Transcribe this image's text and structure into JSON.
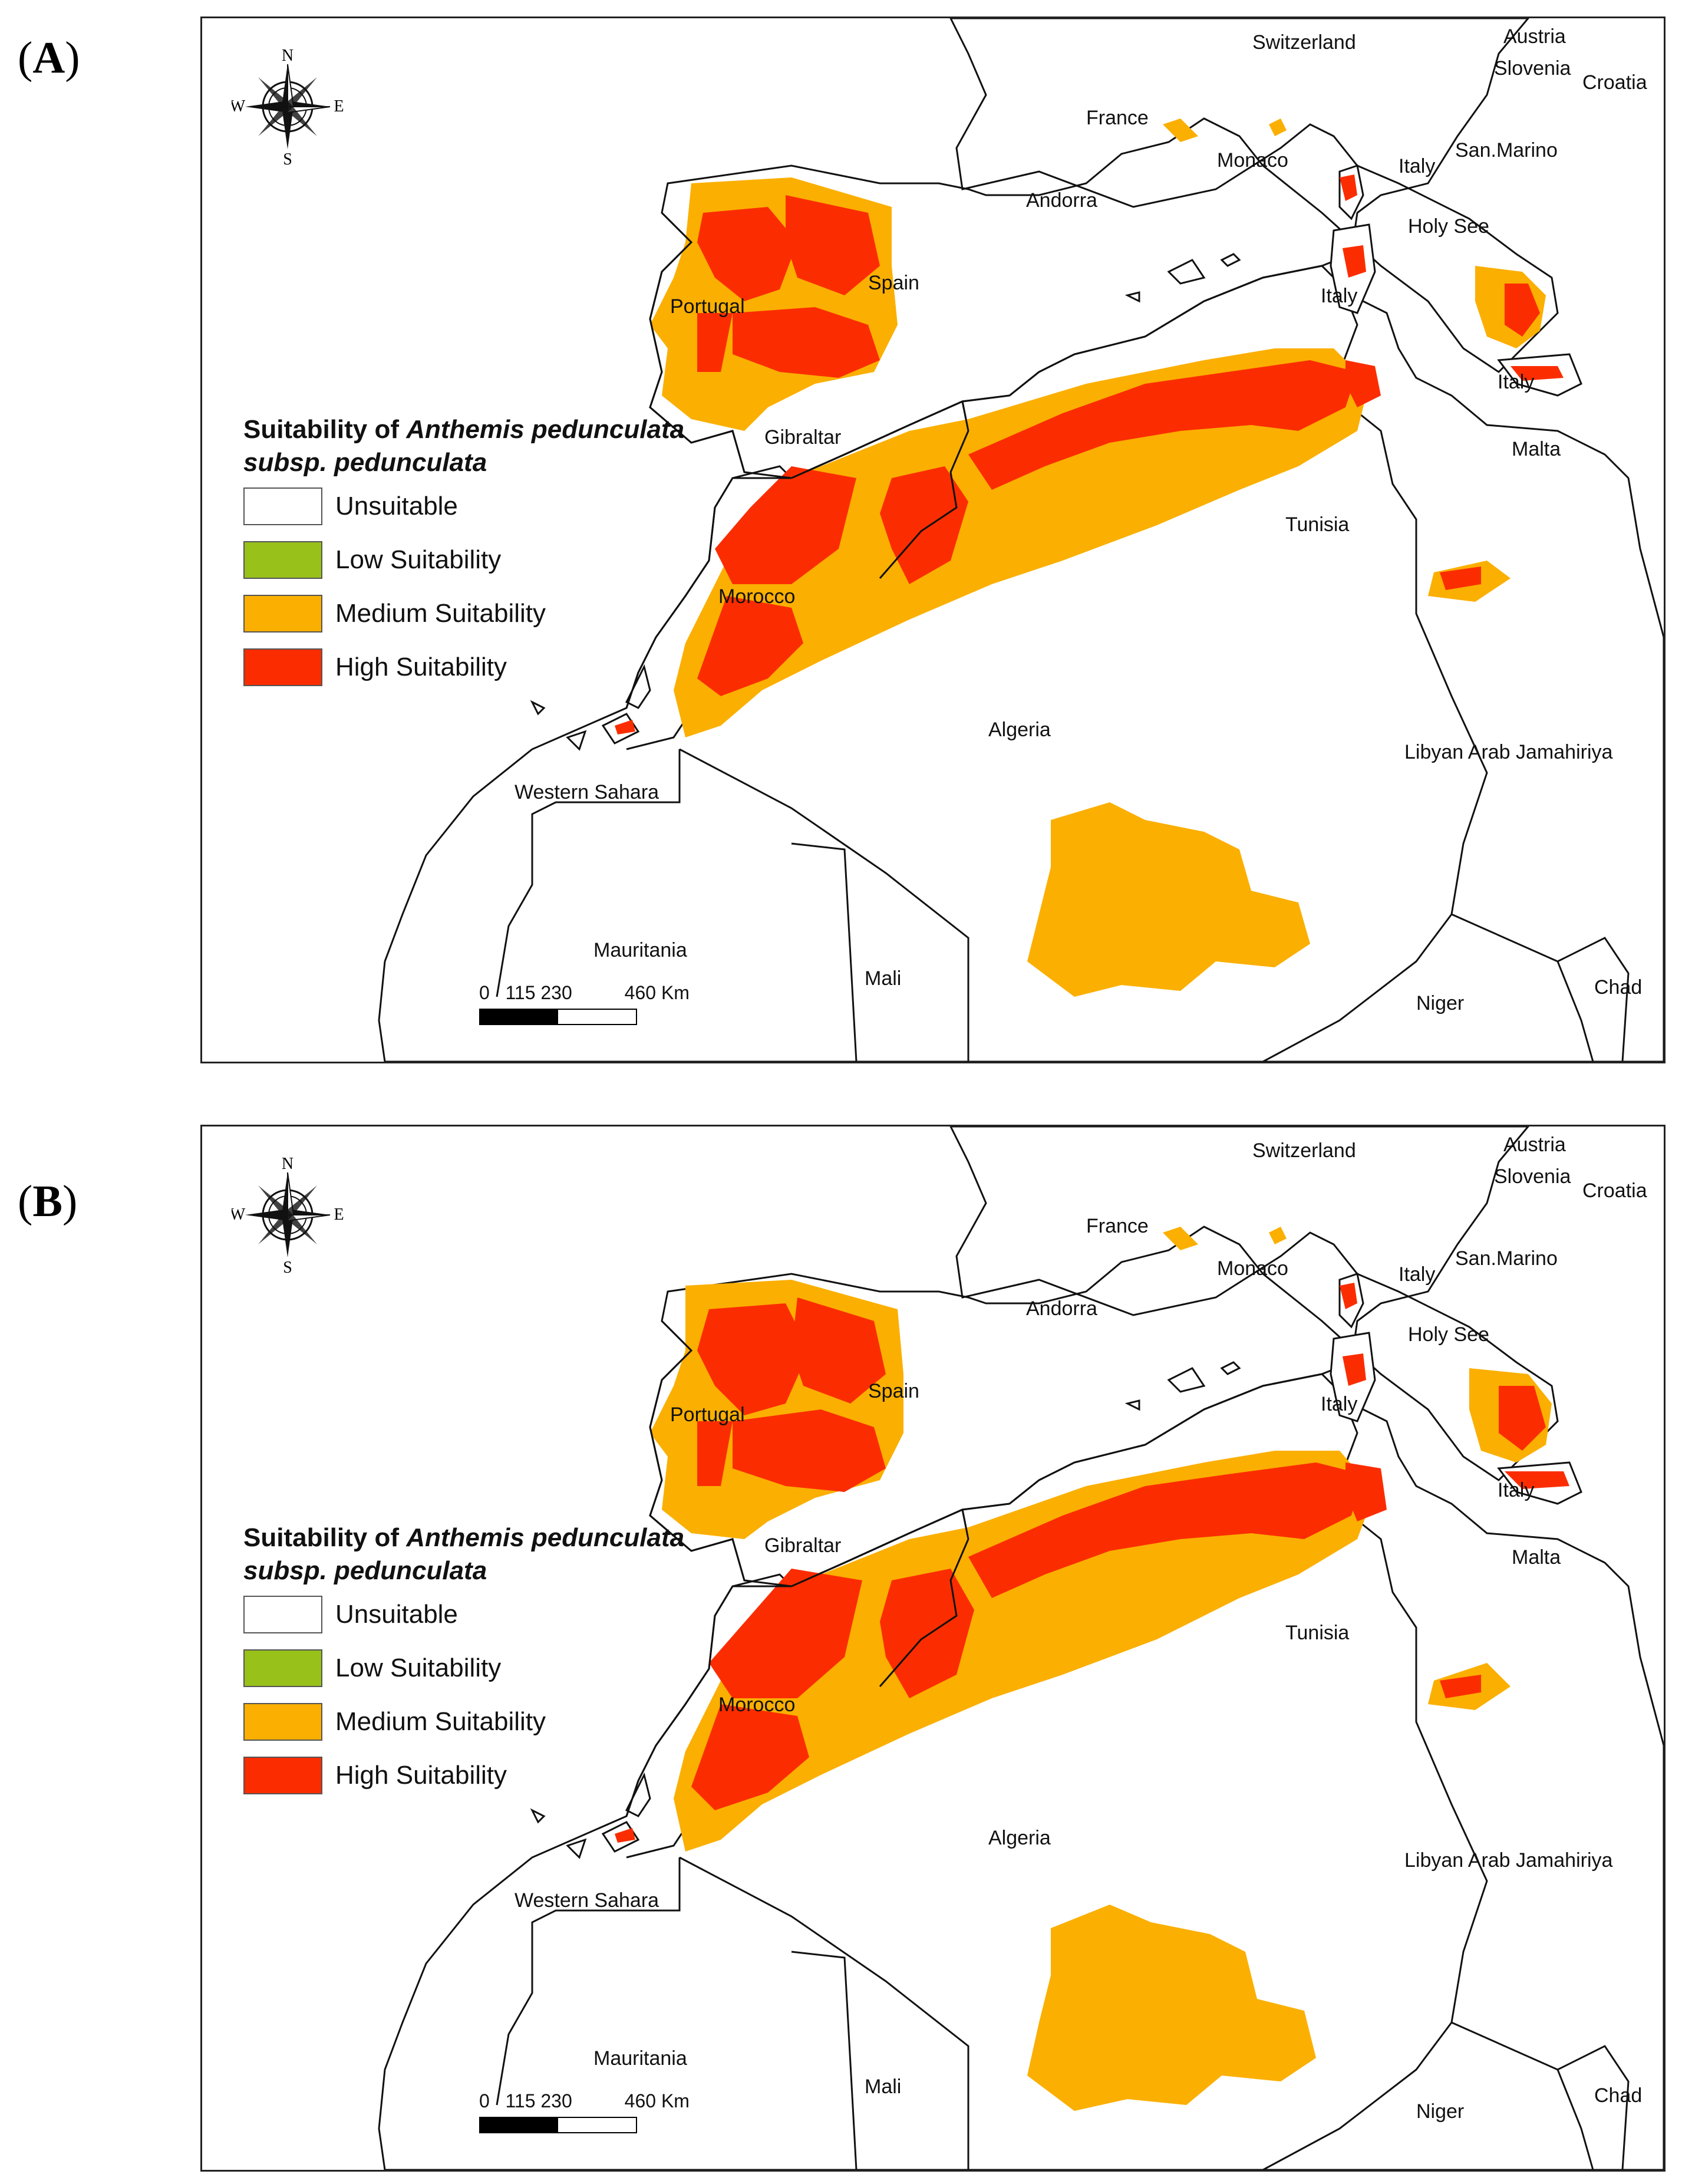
{
  "panels": [
    {
      "id": "A",
      "label": "A",
      "legend": {
        "title_prefix": "Suitability of ",
        "title_species": "Anthemis pedunculata",
        "title_line2": "subsp. pedunculata",
        "classes": [
          {
            "label": "Unsuitable",
            "color": "#ffffff"
          },
          {
            "label": "Low Suitability",
            "color": "#98c11a"
          },
          {
            "label": "Medium Suitability",
            "color": "#fbaf00"
          },
          {
            "label": "High Suitability",
            "color": "#fb2d00"
          }
        ]
      },
      "compass": {
        "n": "N",
        "s": "S",
        "e": "E",
        "w": "W"
      },
      "scale": {
        "labels": "0   115 230          460 Km"
      }
    },
    {
      "id": "B",
      "label": "B",
      "legend": {
        "title_prefix": "Suitability of ",
        "title_species": "Anthemis pedunculata",
        "title_line2": "subsp. pedunculata",
        "classes": [
          {
            "label": "Unsuitable",
            "color": "#ffffff"
          },
          {
            "label": "Low Suitability",
            "color": "#98c11a"
          },
          {
            "label": "Medium Suitability",
            "color": "#fbaf00"
          },
          {
            "label": "High Suitability",
            "color": "#fb2d00"
          }
        ]
      },
      "compass": {
        "n": "N",
        "s": "S",
        "e": "E",
        "w": "W"
      },
      "scale": {
        "labels": "0   115 230          460 Km"
      }
    }
  ],
  "countries": [
    "Switzerland",
    "Austria",
    "Slovenia",
    "Croatia",
    "France",
    "San.Marino",
    "Monaco",
    "Italy",
    "Andorra",
    "Holy See",
    "Spain",
    "Italy",
    "Portugal",
    "Italy",
    "Gibraltar",
    "Malta",
    "Tunisia",
    "Morocco",
    "Algeria",
    "Libyan Arab Jamahiriya",
    "Western Sahara",
    "Mauritania",
    "Mali",
    "Niger",
    "Chad"
  ]
}
